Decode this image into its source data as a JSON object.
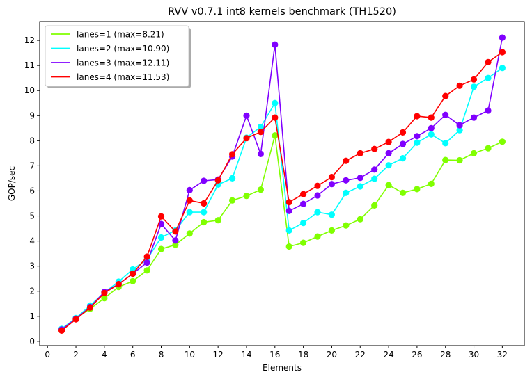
{
  "chart_data": {
    "type": "line",
    "title": "RVV v0.7.1 int8 kernels benchmark (TH1520)",
    "xlabel": "Elements",
    "ylabel": "GOP/sec",
    "xlim": [
      -0.55,
      33.55
    ],
    "ylim": [
      -0.17,
      12.75
    ],
    "xticks": [
      0,
      2,
      4,
      6,
      8,
      10,
      12,
      14,
      16,
      18,
      20,
      22,
      24,
      26,
      28,
      30,
      32
    ],
    "yticks": [
      0,
      1,
      2,
      3,
      4,
      5,
      6,
      7,
      8,
      9,
      10,
      11,
      12
    ],
    "grid": false,
    "legend_position": "top-left",
    "x": [
      1,
      2,
      3,
      4,
      5,
      6,
      7,
      8,
      9,
      10,
      11,
      12,
      13,
      14,
      15,
      16,
      17,
      18,
      19,
      20,
      21,
      22,
      23,
      24,
      25,
      26,
      27,
      28,
      29,
      30,
      31,
      32
    ],
    "series": [
      {
        "name": "lanes=1 (max=8.21)",
        "color": "#80ff00",
        "values": [
          0.45,
          0.92,
          1.3,
          1.72,
          2.17,
          2.4,
          2.83,
          3.68,
          3.85,
          4.3,
          4.75,
          4.83,
          5.62,
          5.8,
          6.05,
          8.21,
          3.78,
          3.93,
          4.18,
          4.42,
          4.62,
          4.87,
          5.42,
          6.23,
          5.92,
          6.07,
          6.28,
          7.23,
          7.22,
          7.5,
          7.7,
          7.96
        ]
      },
      {
        "name": "lanes=2 (max=10.90)",
        "color": "#00ffff",
        "values": [
          0.5,
          0.93,
          1.43,
          1.95,
          2.38,
          2.87,
          3.27,
          4.14,
          4.42,
          5.15,
          5.15,
          6.25,
          6.5,
          8.12,
          8.55,
          9.5,
          4.42,
          4.72,
          5.15,
          5.05,
          5.92,
          6.18,
          6.48,
          7.02,
          7.3,
          7.92,
          8.25,
          7.9,
          8.42,
          10.15,
          10.5,
          10.9
        ]
      },
      {
        "name": "lanes=3 (max=12.11)",
        "color": "#8000ff",
        "values": [
          0.47,
          0.9,
          1.37,
          1.97,
          2.28,
          2.7,
          3.14,
          4.68,
          4.02,
          6.03,
          6.4,
          6.45,
          7.37,
          9.0,
          7.47,
          11.83,
          5.2,
          5.48,
          5.82,
          6.27,
          6.42,
          6.52,
          6.85,
          7.5,
          7.87,
          8.18,
          8.5,
          9.03,
          8.62,
          8.92,
          9.2,
          12.11
        ]
      },
      {
        "name": "lanes=4 (max=11.53)",
        "color": "#ff0000",
        "values": [
          0.43,
          0.88,
          1.35,
          1.93,
          2.28,
          2.7,
          3.38,
          4.98,
          4.38,
          5.62,
          5.5,
          6.42,
          7.46,
          8.1,
          8.35,
          8.92,
          5.55,
          5.87,
          6.2,
          6.55,
          7.2,
          7.5,
          7.67,
          7.95,
          8.33,
          8.98,
          8.92,
          9.78,
          10.19,
          10.44,
          11.13,
          11.53
        ]
      }
    ]
  }
}
